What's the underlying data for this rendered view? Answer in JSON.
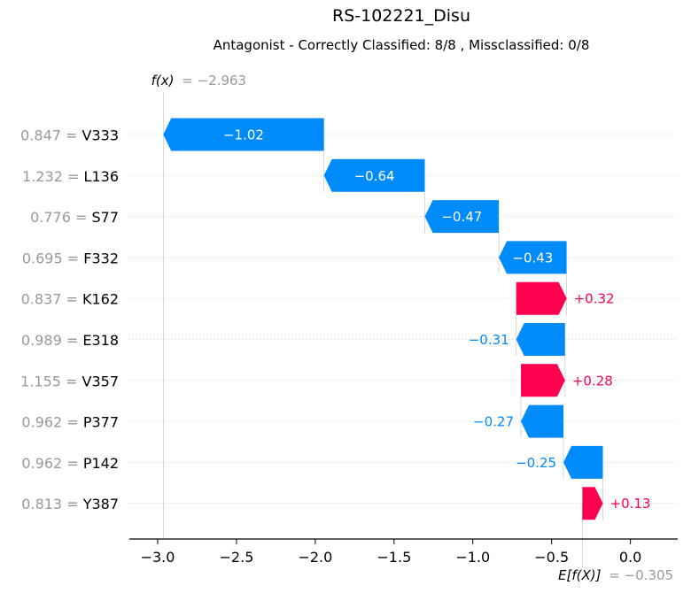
{
  "chart_data": {
    "type": "waterfall",
    "title": "RS-102221_Disu",
    "subtitle": "Antagonist - Correctly Classified: 8/8 , Missclassified: 0/8",
    "fx_label": "f(x)",
    "fx_value": "= −2.963",
    "efx_label": "E[f(X)]",
    "efx_value": "= −0.305",
    "fx": -2.963,
    "base_value": -0.305,
    "xlim": [
      -3.18,
      0.3
    ],
    "xticks": [
      -3.0,
      -2.5,
      -2.0,
      -1.5,
      -1.0,
      -0.5,
      0.0
    ],
    "xtick_labels": [
      "−3.0",
      "−2.5",
      "−2.0",
      "−1.5",
      "−1.0",
      "−0.5",
      "0.0"
    ],
    "features": [
      {
        "feature": "V333",
        "feature_value": "0.847",
        "shap": -1.02,
        "label": "−1.02"
      },
      {
        "feature": "L136",
        "feature_value": "1.232",
        "shap": -0.64,
        "label": "−0.64"
      },
      {
        "feature": "S77",
        "feature_value": "0.776",
        "shap": -0.47,
        "label": "−0.47"
      },
      {
        "feature": "F332",
        "feature_value": "0.695",
        "shap": -0.43,
        "label": "−0.43"
      },
      {
        "feature": "K162",
        "feature_value": "0.837",
        "shap": 0.32,
        "label": "+0.32"
      },
      {
        "feature": "E318",
        "feature_value": "0.989",
        "shap": -0.31,
        "label": "−0.31"
      },
      {
        "feature": "V357",
        "feature_value": "1.155",
        "shap": 0.28,
        "label": "+0.28"
      },
      {
        "feature": "P377",
        "feature_value": "0.962",
        "shap": -0.27,
        "label": "−0.27"
      },
      {
        "feature": "P142",
        "feature_value": "0.962",
        "shap": -0.25,
        "label": "−0.25"
      },
      {
        "feature": "Y387",
        "feature_value": "0.813",
        "shap": 0.13,
        "label": "+0.13"
      }
    ],
    "colors": {
      "negative": "#008bfb",
      "positive": "#ff0051",
      "axis": "#000000",
      "muted": "#999999",
      "grid": "#cccccc"
    }
  }
}
